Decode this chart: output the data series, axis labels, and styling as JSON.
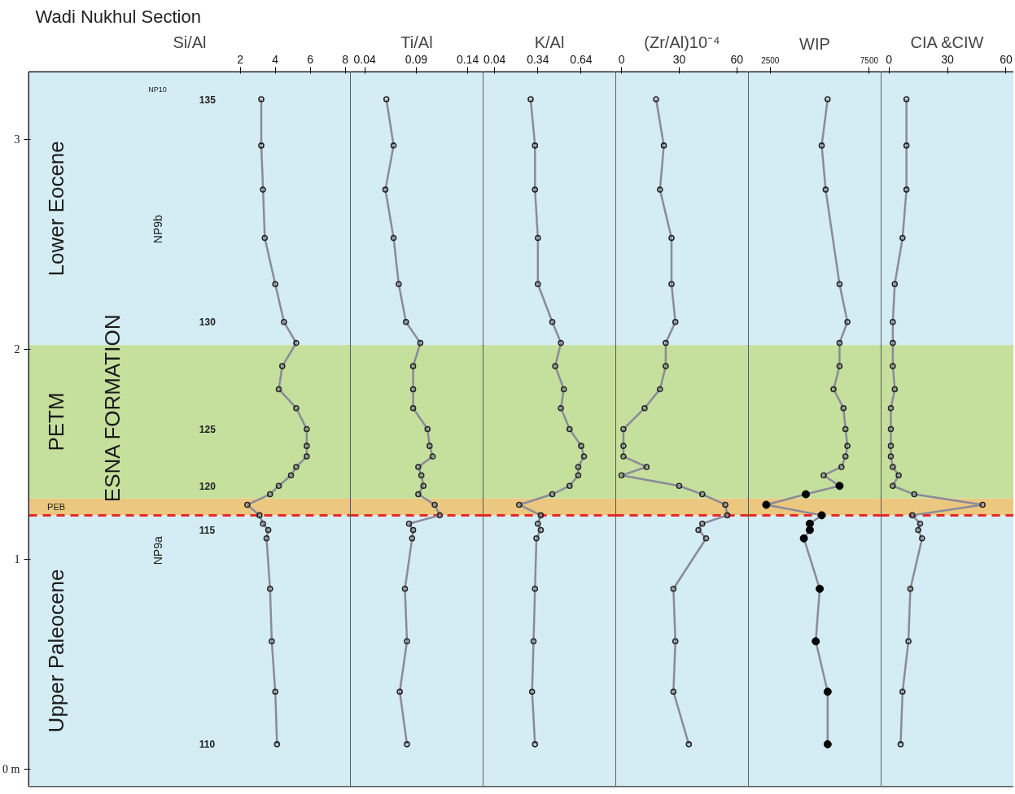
{
  "chart_data": [
    {
      "type": "line",
      "title": "Wadi Nukhul Section",
      "xlabel": "Si/Al",
      "xlim": [
        -10.1,
        8.3
      ],
      "xticks": [
        2,
        4,
        6,
        8
      ],
      "ylim": [
        -0.08,
        3.32
      ],
      "yticks": [
        {
          "value": 0,
          "label": "0 m"
        },
        1,
        2,
        3
      ],
      "bands": [
        {
          "axis": "y",
          "from": 2.02,
          "to": 3.32,
          "label": "Lower Eocene",
          "color": "#d4ecf3"
        },
        {
          "axis": "y",
          "from": 1.29,
          "to": 2.02,
          "label": "PETM",
          "color": "#c5df9c"
        },
        {
          "axis": "y",
          "from": 1.21,
          "to": 1.29,
          "label": "PEB",
          "color": "#ecc780"
        },
        {
          "axis": "y",
          "from": -0.08,
          "to": 1.21,
          "label": "Upper Paleocene",
          "color": "#d4ecf3"
        }
      ],
      "ref_lines": [
        {
          "axis": "y",
          "value": 1.21,
          "color": "#e8282a",
          "line_style": "dashed"
        }
      ],
      "annotations": [
        "ESNA FORMATION",
        "NP10",
        "NP9b",
        "NP9a",
        "135",
        "130",
        "125",
        "120",
        "115",
        "110"
      ],
      "marker": "circle",
      "series": [
        {
          "color": "#8a8a9a",
          "x": [
            3.2,
            3.2,
            3.3,
            3.4,
            4.0,
            4.5,
            5.2,
            4.4,
            4.2,
            5.2,
            5.8,
            5.8,
            5.8,
            5.2,
            4.9,
            4.2,
            3.7,
            2.4,
            3.1,
            3.3,
            3.6,
            3.5,
            3.7,
            3.8,
            4.0,
            4.1
          ],
          "values": [
            3.19,
            2.97,
            2.76,
            2.53,
            2.31,
            2.13,
            2.03,
            1.92,
            1.81,
            1.72,
            1.62,
            1.54,
            1.49,
            1.44,
            1.4,
            1.35,
            1.31,
            1.26,
            1.21,
            1.17,
            1.14,
            1.1,
            0.86,
            0.61,
            0.37,
            0.12
          ]
        }
      ]
    },
    {
      "type": "line",
      "xlabel": "Ti/Al",
      "xlim": [
        0.026,
        0.155
      ],
      "xticks": [
        0.04,
        0.09,
        0.14
      ],
      "ylim": [
        -0.08,
        3.32
      ],
      "tick_labels": "x",
      "bands": [
        {
          "axis": "y",
          "from": 2.02,
          "to": 3.32,
          "color": "#d4ecf3"
        },
        {
          "axis": "y",
          "from": 1.29,
          "to": 2.02,
          "color": "#c5df9c"
        },
        {
          "axis": "y",
          "from": 1.21,
          "to": 1.29,
          "color": "#ecc780"
        },
        {
          "axis": "y",
          "from": -0.08,
          "to": 1.21,
          "color": "#d4ecf3"
        }
      ],
      "ref_lines": [
        {
          "axis": "y",
          "value": 1.21,
          "color": "#e8282a",
          "line_style": "dashed"
        }
      ],
      "marker": "circle",
      "series": [
        {
          "color": "#8a8a9a",
          "x": [
            0.061,
            0.068,
            0.06,
            0.068,
            0.073,
            0.08,
            0.094,
            0.087,
            0.087,
            0.087,
            0.101,
            0.103,
            0.106,
            0.092,
            0.095,
            0.097,
            0.092,
            0.108,
            0.113,
            0.083,
            0.087,
            0.086,
            0.079,
            0.081,
            0.074,
            0.081
          ],
          "values": [
            3.19,
            2.97,
            2.76,
            2.53,
            2.31,
            2.13,
            2.03,
            1.92,
            1.81,
            1.72,
            1.62,
            1.54,
            1.49,
            1.44,
            1.4,
            1.35,
            1.31,
            1.26,
            1.21,
            1.17,
            1.14,
            1.1,
            0.86,
            0.61,
            0.37,
            0.12
          ]
        }
      ]
    },
    {
      "type": "line",
      "xlabel": "K/Al",
      "xlim": [
        -0.04,
        0.88
      ],
      "xticks": [
        0.04,
        0.34,
        0.64
      ],
      "ylim": [
        -0.08,
        3.32
      ],
      "tick_labels": "x",
      "bands": [
        {
          "axis": "y",
          "from": 2.02,
          "to": 3.32,
          "color": "#d4ecf3"
        },
        {
          "axis": "y",
          "from": 1.29,
          "to": 2.02,
          "color": "#c5df9c"
        },
        {
          "axis": "y",
          "from": 1.21,
          "to": 1.29,
          "color": "#ecc780"
        },
        {
          "axis": "y",
          "from": -0.08,
          "to": 1.21,
          "color": "#d4ecf3"
        }
      ],
      "ref_lines": [
        {
          "axis": "y",
          "value": 1.21,
          "color": "#e8282a",
          "line_style": "dashed"
        }
      ],
      "marker": "circle",
      "series": [
        {
          "color": "#8a8a9a",
          "x": [
            0.29,
            0.32,
            0.32,
            0.34,
            0.34,
            0.44,
            0.5,
            0.46,
            0.52,
            0.5,
            0.56,
            0.64,
            0.66,
            0.62,
            0.62,
            0.56,
            0.44,
            0.21,
            0.36,
            0.34,
            0.36,
            0.33,
            0.32,
            0.31,
            0.3,
            0.32
          ],
          "values": [
            3.19,
            2.97,
            2.76,
            2.53,
            2.31,
            2.13,
            2.03,
            1.92,
            1.81,
            1.72,
            1.62,
            1.54,
            1.49,
            1.44,
            1.4,
            1.35,
            1.31,
            1.26,
            1.21,
            1.17,
            1.14,
            1.1,
            0.86,
            0.61,
            0.37,
            0.12
          ]
        }
      ]
    },
    {
      "type": "line",
      "xlabel": "(Zr/Al)10⁻⁴",
      "xlim": [
        -3,
        66
      ],
      "xticks": [
        0,
        30,
        60
      ],
      "ylim": [
        -0.08,
        3.32
      ],
      "tick_labels": "x",
      "bands": [
        {
          "axis": "y",
          "from": 2.02,
          "to": 3.32,
          "color": "#d4ecf3"
        },
        {
          "axis": "y",
          "from": 1.29,
          "to": 2.02,
          "color": "#c5df9c"
        },
        {
          "axis": "y",
          "from": 1.21,
          "to": 1.29,
          "color": "#ecc780"
        },
        {
          "axis": "y",
          "from": -0.08,
          "to": 1.21,
          "color": "#d4ecf3"
        }
      ],
      "ref_lines": [
        {
          "axis": "y",
          "value": 1.21,
          "color": "#e8282a",
          "line_style": "dashed"
        }
      ],
      "marker": "circle",
      "series": [
        {
          "color": "#8a8a9a",
          "x": [
            18,
            22,
            20,
            26,
            26,
            28,
            23,
            23,
            20,
            12,
            1,
            1,
            1,
            13,
            0,
            30,
            42,
            54,
            55,
            42,
            40,
            44,
            27,
            28,
            27,
            35
          ],
          "values": [
            3.19,
            2.97,
            2.76,
            2.53,
            2.31,
            2.13,
            2.03,
            1.92,
            1.81,
            1.72,
            1.62,
            1.54,
            1.49,
            1.44,
            1.4,
            1.35,
            1.31,
            1.26,
            1.21,
            1.17,
            1.14,
            1.1,
            0.86,
            0.61,
            0.37,
            0.12
          ]
        }
      ]
    },
    {
      "type": "line",
      "xlabel": "WIP",
      "xlim": [
        1400,
        8100
      ],
      "xticks": [
        2500,
        7500
      ],
      "ylim": [
        -0.08,
        3.32
      ],
      "tick_labels": "x",
      "bands": [
        {
          "axis": "y",
          "from": 2.02,
          "to": 3.32,
          "color": "#d4ecf3"
        },
        {
          "axis": "y",
          "from": 1.29,
          "to": 2.02,
          "color": "#c5df9c"
        },
        {
          "axis": "y",
          "from": 1.21,
          "to": 1.29,
          "color": "#ecc780"
        },
        {
          "axis": "y",
          "from": -0.08,
          "to": 1.21,
          "color": "#d4ecf3"
        }
      ],
      "ref_lines": [
        {
          "axis": "y",
          "value": 1.21,
          "color": "#e8282a",
          "line_style": "dashed"
        }
      ],
      "marker": "circle",
      "series": [
        {
          "color": "#8a8a9a",
          "x": [
            5400,
            5100,
            5300,
            6000,
            6400,
            6000,
            6000,
            5700,
            6200,
            6300,
            6400,
            6300,
            6100,
            5200,
            6000,
            4300,
            2300,
            5100,
            4500,
            4500,
            4200,
            5000,
            4800,
            5400,
            5400
          ],
          "values": [
            3.19,
            2.97,
            2.76,
            2.31,
            2.13,
            2.03,
            1.92,
            1.81,
            1.72,
            1.62,
            1.54,
            1.49,
            1.44,
            1.4,
            1.35,
            1.31,
            1.26,
            1.21,
            1.17,
            1.14,
            1.1,
            0.86,
            0.61,
            0.37,
            0.12
          ]
        },
        {
          "type": "scatter",
          "color": "#000000",
          "x": [
            6000,
            4300,
            2300,
            5100,
            4500,
            4500,
            4200,
            5000,
            4800,
            5400,
            5400
          ],
          "values": [
            1.35,
            1.31,
            1.26,
            1.21,
            1.17,
            1.14,
            1.1,
            0.86,
            0.61,
            0.37,
            0.12
          ]
        }
      ]
    },
    {
      "type": "line",
      "xlabel": "CIA &CIW",
      "xlim": [
        -4,
        64
      ],
      "xticks": [
        0,
        30,
        60
      ],
      "ylim": [
        -0.08,
        3.32
      ],
      "tick_labels": "x",
      "bands": [
        {
          "axis": "y",
          "from": 2.02,
          "to": 3.32,
          "color": "#d4ecf3"
        },
        {
          "axis": "y",
          "from": 1.29,
          "to": 2.02,
          "color": "#c5df9c"
        },
        {
          "axis": "y",
          "from": 1.21,
          "to": 1.29,
          "color": "#ecc780"
        },
        {
          "axis": "y",
          "from": -0.08,
          "to": 1.21,
          "color": "#d4ecf3"
        }
      ],
      "ref_lines": [
        {
          "axis": "y",
          "value": 1.21,
          "color": "#e8282a",
          "line_style": "dashed"
        }
      ],
      "marker": "circle",
      "series": [
        {
          "color": "#8a8a9a",
          "x": [
            9,
            9,
            9,
            7,
            3,
            2,
            2,
            2,
            3,
            1,
            1,
            1,
            1,
            2,
            5,
            2,
            13,
            48,
            12,
            16,
            15,
            17,
            11,
            10,
            7,
            6
          ],
          "values": [
            3.19,
            2.97,
            2.76,
            2.53,
            2.31,
            2.13,
            2.03,
            1.92,
            1.81,
            1.72,
            1.62,
            1.54,
            1.49,
            1.44,
            1.4,
            1.35,
            1.31,
            1.26,
            1.21,
            1.17,
            1.14,
            1.1,
            0.86,
            0.61,
            0.37,
            0.12
          ]
        }
      ]
    }
  ]
}
